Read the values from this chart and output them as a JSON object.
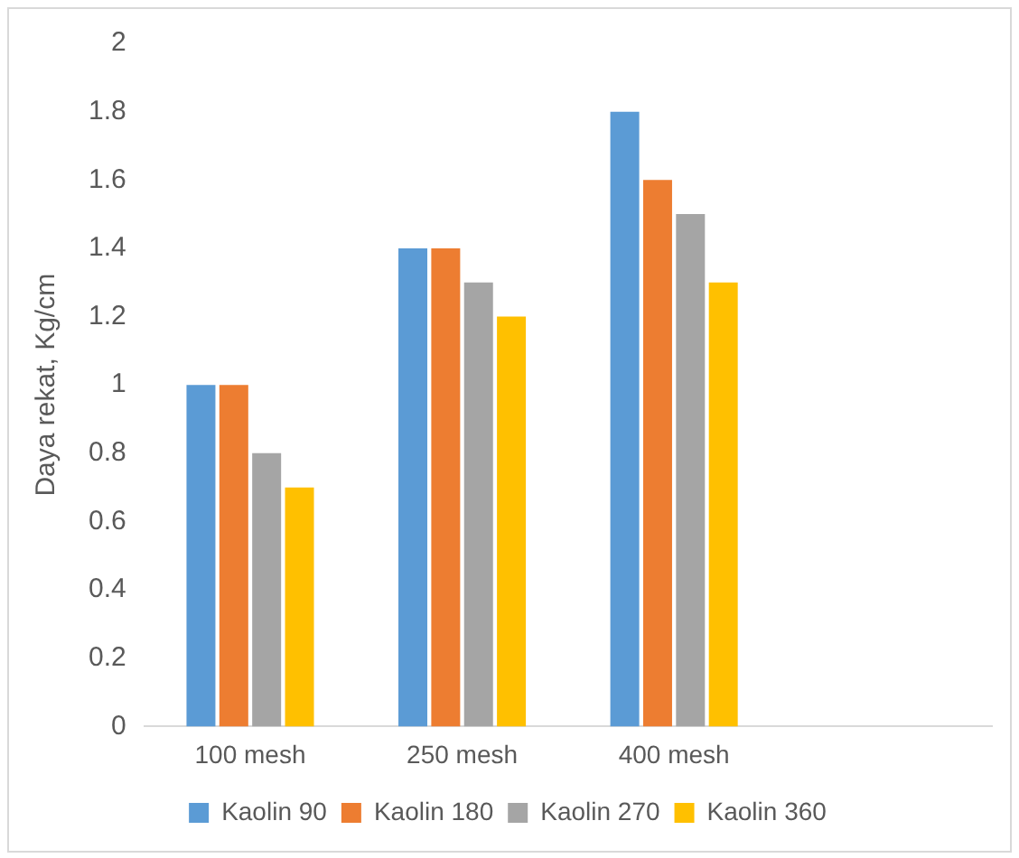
{
  "chart_data": {
    "type": "bar",
    "ylabel": "Daya rekat, Kg/cm",
    "categories": [
      "100 mesh",
      "250 mesh",
      "400 mesh",
      null
    ],
    "series": [
      {
        "name": "Kaolin 90",
        "color": "#5b9bd5",
        "values": [
          1.0,
          1.4,
          1.8,
          null
        ]
      },
      {
        "name": "Kaolin 180",
        "color": "#ed7d31",
        "values": [
          1.0,
          1.4,
          1.6,
          null
        ]
      },
      {
        "name": "Kaolin 270",
        "color": "#a5a5a5",
        "values": [
          0.8,
          1.3,
          1.5,
          null
        ]
      },
      {
        "name": "Kaolin 360",
        "color": "#ffc000",
        "values": [
          0.7,
          1.2,
          1.3,
          null
        ]
      }
    ],
    "ylim": [
      0,
      2
    ],
    "yticks": [
      0,
      0.2,
      0.4,
      0.6,
      0.8,
      1,
      1.2,
      1.4,
      1.6,
      1.8,
      2
    ],
    "grid": false,
    "legend": "bottom"
  }
}
